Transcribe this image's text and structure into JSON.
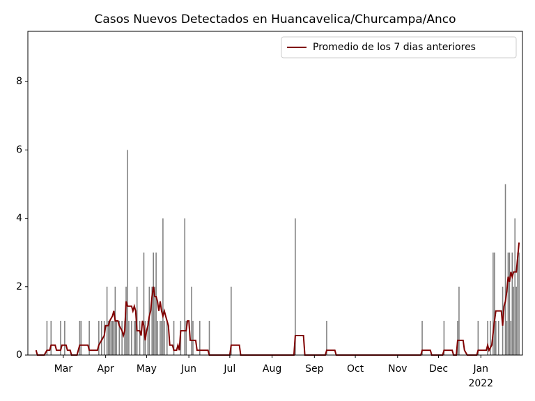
{
  "chart_data": {
    "type": "bar_line",
    "title": "Casos Nuevos Detectados en Huancavelica/Churcampa/Anco",
    "bars": {
      "color": "#808080",
      "x": [
        8,
        11,
        18,
        21,
        32,
        33,
        39,
        46,
        48,
        50,
        52,
        53,
        54,
        55,
        56,
        57,
        58,
        59,
        61,
        63,
        65,
        66,
        67,
        68,
        70,
        72,
        73,
        74,
        76,
        79,
        80,
        82,
        83,
        85,
        86,
        87,
        88,
        89,
        91,
        92,
        93,
        94,
        96,
        101,
        106,
        109,
        110,
        114,
        115,
        120,
        127,
        143,
        190,
        213,
        283,
        299,
        309,
        310,
        324,
        331,
        333,
        335,
        336,
        337,
        339,
        342,
        344,
        345,
        346,
        347,
        348,
        349,
        350,
        351,
        352,
        353,
        354
      ],
      "values": [
        1,
        1,
        1,
        1,
        1,
        1,
        1,
        1,
        1,
        1,
        2,
        1,
        1,
        1,
        1,
        1,
        2,
        1,
        1,
        1,
        1,
        2,
        6,
        1,
        1,
        1,
        1,
        2,
        1,
        3,
        1,
        1,
        2,
        2,
        3,
        2,
        3,
        1,
        1,
        1,
        4,
        1,
        1,
        1,
        1,
        4,
        1,
        2,
        1,
        1,
        1,
        2,
        4,
        1,
        1,
        1,
        1,
        2,
        1,
        1,
        1,
        3,
        3,
        1,
        1,
        2,
        5,
        1,
        3,
        3,
        1,
        3,
        2,
        4,
        2,
        3,
        3
      ]
    },
    "series": [
      {
        "name": "Promedio de los 7 dias anteriores",
        "color": "#800000",
        "x": [
          0,
          1,
          6,
          8,
          10,
          11,
          14,
          15,
          18,
          19,
          22,
          23,
          25,
          26,
          30,
          32,
          38,
          39,
          45,
          46,
          48,
          50,
          51,
          53,
          54,
          56,
          57,
          58,
          60,
          61,
          63,
          64,
          65,
          66,
          67,
          70,
          71,
          72,
          73,
          74,
          76,
          77,
          78,
          79,
          80,
          81,
          82,
          83,
          84,
          85,
          86,
          87,
          88,
          89,
          90,
          91,
          92,
          93,
          94,
          95,
          96,
          97,
          98,
          100,
          101,
          103,
          104,
          105,
          106,
          110,
          111,
          112,
          113,
          117,
          118,
          126,
          127,
          142,
          143,
          149,
          150,
          189,
          190,
          196,
          197,
          212,
          213,
          219,
          220,
          282,
          283,
          289,
          290,
          298,
          299,
          305,
          306,
          308,
          309,
          313,
          314,
          316,
          323,
          324,
          330,
          331,
          332,
          334,
          336,
          337,
          341,
          342,
          343,
          344,
          345,
          346,
          347,
          348,
          349,
          350,
          351,
          352,
          353,
          354
        ],
        "values": [
          0.14,
          0,
          0,
          0.14,
          0.14,
          0.29,
          0.29,
          0.14,
          0.14,
          0.29,
          0.29,
          0.14,
          0.14,
          0,
          0,
          0.29,
          0.29,
          0.14,
          0.14,
          0.29,
          0.43,
          0.57,
          0.86,
          0.86,
          1,
          1.14,
          1.29,
          1,
          1,
          0.86,
          0.71,
          0.57,
          0.71,
          1.57,
          1.43,
          1.43,
          1.29,
          1.43,
          1.29,
          0.71,
          0.71,
          0.57,
          1,
          0.86,
          0.43,
          0.71,
          0.86,
          1.14,
          1.29,
          1.71,
          2,
          1.71,
          1.71,
          1.57,
          1.29,
          1.57,
          1.29,
          1.14,
          1.29,
          1.14,
          1,
          0.86,
          0.29,
          0.29,
          0.14,
          0.14,
          0.29,
          0.14,
          0.71,
          0.71,
          1,
          1,
          0.43,
          0.43,
          0.14,
          0.14,
          0,
          0,
          0.29,
          0.29,
          0,
          0,
          0.57,
          0.57,
          0,
          0,
          0.14,
          0.14,
          0,
          0,
          0.14,
          0.14,
          0,
          0,
          0.14,
          0.14,
          0,
          0,
          0.43,
          0.43,
          0.14,
          0,
          0,
          0.14,
          0.14,
          0.29,
          0.14,
          0.29,
          1,
          1.29,
          1.29,
          0.86,
          1.43,
          1.57,
          1.86,
          2.29,
          2.14,
          2.43,
          2.29,
          2.43,
          2.43,
          2.43,
          2.86,
          3.29
        ]
      }
    ],
    "xlim": [
      -6,
      356.5
    ],
    "xticks": [
      {
        "value": 20,
        "label": "Mar"
      },
      {
        "value": 51,
        "label": "Apr"
      },
      {
        "value": 81,
        "label": "May"
      },
      {
        "value": 112,
        "label": "Jun"
      },
      {
        "value": 142,
        "label": "Jul"
      },
      {
        "value": 173,
        "label": "Aug"
      },
      {
        "value": 204,
        "label": "Sep"
      },
      {
        "value": 234,
        "label": "Oct"
      },
      {
        "value": 265,
        "label": "Nov"
      },
      {
        "value": 295,
        "label": "Dec"
      },
      {
        "value": 326,
        "label": "Jan"
      }
    ],
    "year_label": "2022",
    "ylim": [
      0,
      9.47
    ],
    "yticks": [
      0,
      2,
      4,
      6,
      8
    ],
    "legend": "upper right"
  }
}
